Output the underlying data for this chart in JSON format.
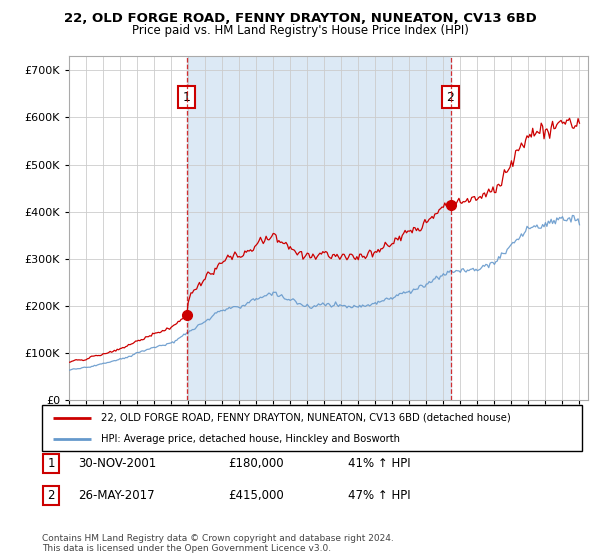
{
  "title": "22, OLD FORGE ROAD, FENNY DRAYTON, NUNEATON, CV13 6BD",
  "subtitle": "Price paid vs. HM Land Registry's House Price Index (HPI)",
  "ytick_values": [
    0,
    100000,
    200000,
    300000,
    400000,
    500000,
    600000,
    700000
  ],
  "ylim": [
    0,
    730000
  ],
  "xlim_start": 1995.0,
  "xlim_end": 2025.5,
  "sale1_x": 2001.92,
  "sale1_y": 180000,
  "sale1_label": "1",
  "sale1_date": "30-NOV-2001",
  "sale1_price": "£180,000",
  "sale1_hpi": "41% ↑ HPI",
  "sale2_x": 2017.42,
  "sale2_y": 415000,
  "sale2_label": "2",
  "sale2_date": "26-MAY-2017",
  "sale2_price": "£415,000",
  "sale2_hpi": "47% ↑ HPI",
  "line_color_red": "#cc0000",
  "line_color_blue": "#6699cc",
  "fill_color": "#dce9f5",
  "marker_box_color": "#cc0000",
  "background_color": "#ffffff",
  "grid_color": "#cccccc",
  "legend_line1": "22, OLD FORGE ROAD, FENNY DRAYTON, NUNEATON, CV13 6BD (detached house)",
  "legend_line2": "HPI: Average price, detached house, Hinckley and Bosworth",
  "footnote": "Contains HM Land Registry data © Crown copyright and database right 2024.\nThis data is licensed under the Open Government Licence v3.0."
}
